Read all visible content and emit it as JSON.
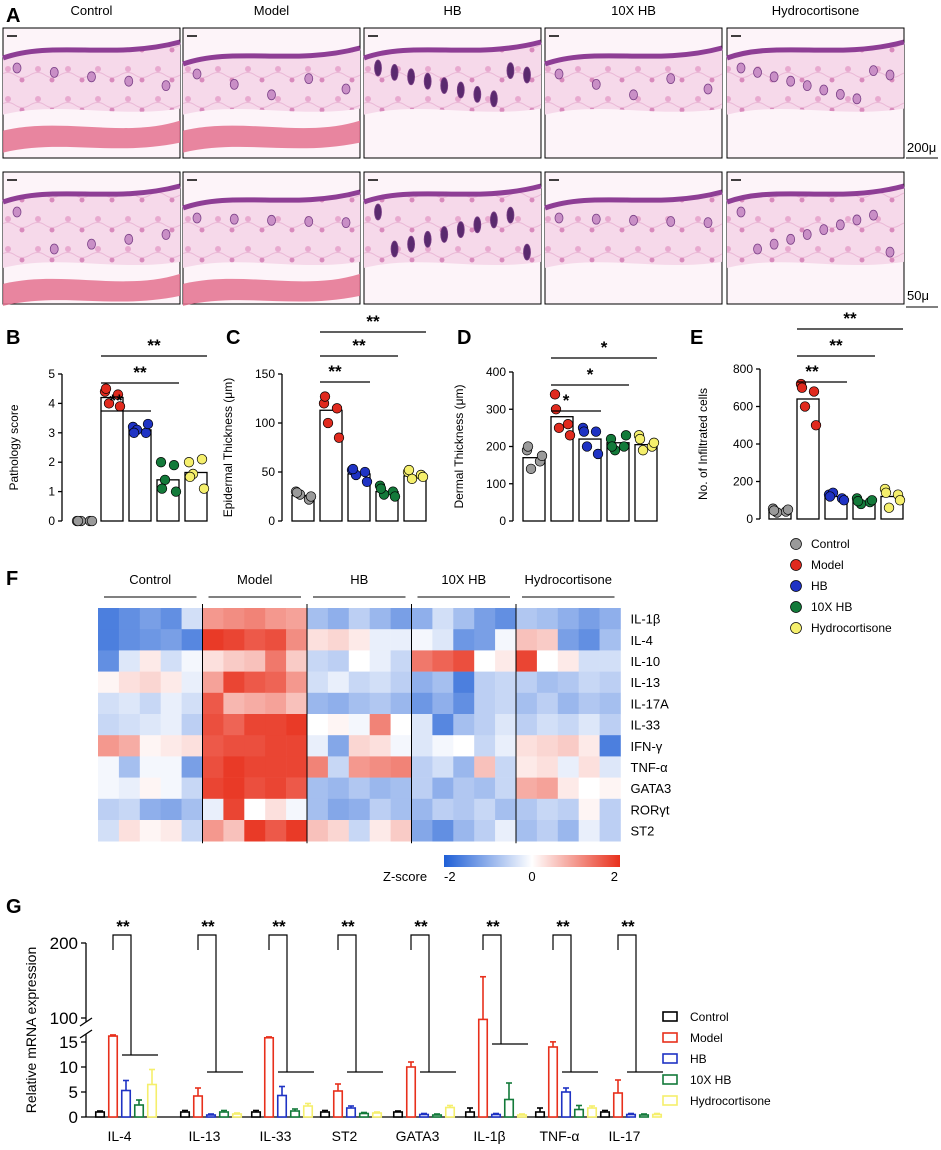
{
  "panel_a": {
    "letter": "A",
    "groups": [
      "Control",
      "Model",
      "HB",
      "10X HB",
      "Hydrocortisone"
    ],
    "scale_top": "200μ",
    "scale_bottom": "50μ"
  },
  "legend": {
    "items": [
      {
        "label": "Control",
        "color": "#9a9a9a"
      },
      {
        "label": "Model",
        "color": "#e02a1e"
      },
      {
        "label": "HB",
        "color": "#1f33c4"
      },
      {
        "label": "10X HB",
        "color": "#137a3a"
      },
      {
        "label": "Hydrocortisone",
        "color": "#f5ef6c"
      }
    ]
  },
  "chart_data": [
    {
      "panel": "B",
      "type": "bar",
      "ylabel": "Pathology score",
      "ylim": [
        0,
        5
      ],
      "yticks": [
        "0",
        "1",
        "2",
        "3",
        "4",
        "5"
      ],
      "categories": [
        "Control",
        "Model",
        "HB",
        "10X HB",
        "Hydrocortisone"
      ],
      "values": [
        0,
        4.2,
        3.1,
        1.4,
        1.65
      ],
      "points": [
        [
          0,
          0,
          0,
          0,
          0
        ],
        [
          4.4,
          4.3,
          4.0,
          3.9,
          4.5
        ],
        [
          3.2,
          3.0,
          3.1,
          3.3,
          3.0
        ],
        [
          2.0,
          1.9,
          1.4,
          1.0,
          1.1
        ],
        [
          2.0,
          2.1,
          1.6,
          1.1,
          1.5
        ]
      ],
      "sig": [
        {
          "label": "**",
          "from": 1,
          "to": 2
        },
        {
          "label": "**",
          "from": 1,
          "to": 3
        },
        {
          "label": "**",
          "from": 1,
          "to": 4
        }
      ]
    },
    {
      "panel": "C",
      "type": "bar",
      "ylabel": "Epidermal Thickness (μm)",
      "ylim": [
        0,
        150
      ],
      "yticks": [
        "0",
        "50",
        "100",
        "150"
      ],
      "categories": [
        "Control",
        "Model",
        "HB",
        "10X HB",
        "Hydrocortisone"
      ],
      "values": [
        26,
        113,
        48,
        30,
        46
      ],
      "points": [
        [
          30,
          22,
          27,
          25,
          29
        ],
        [
          120,
          115,
          100,
          85,
          127
        ],
        [
          52,
          50,
          47,
          40,
          53
        ],
        [
          36,
          30,
          27,
          25,
          33
        ],
        [
          50,
          47,
          43,
          45,
          52
        ]
      ],
      "sig": [
        {
          "label": "**",
          "from": 1,
          "to": 2
        },
        {
          "label": "**",
          "from": 1,
          "to": 3
        },
        {
          "label": "**",
          "from": 1,
          "to": 4
        }
      ]
    },
    {
      "panel": "D",
      "type": "bar",
      "ylabel": "Dermal Thickness (μm)",
      "ylim": [
        0,
        400
      ],
      "yticks": [
        "0",
        "100",
        "200",
        "300",
        "400"
      ],
      "categories": [
        "Control",
        "Model",
        "HB",
        "10X HB",
        "Hydrocortisone"
      ],
      "values": [
        170,
        280,
        220,
        210,
        205
      ],
      "points": [
        [
          190,
          160,
          140,
          175,
          200
        ],
        [
          340,
          260,
          250,
          230,
          300
        ],
        [
          250,
          240,
          200,
          180,
          240
        ],
        [
          220,
          200,
          190,
          230,
          200
        ],
        [
          230,
          200,
          190,
          210,
          220
        ]
      ],
      "sig": [
        {
          "label": "*",
          "from": 1,
          "to": 2
        },
        {
          "label": "*",
          "from": 1,
          "to": 3
        },
        {
          "label": "*",
          "from": 1,
          "to": 4
        }
      ]
    },
    {
      "panel": "E",
      "type": "bar",
      "ylabel": "No. of Infiltrated cells",
      "ylim": [
        0,
        800
      ],
      "yticks": [
        "0",
        "200",
        "400",
        "600",
        "800"
      ],
      "categories": [
        "Control",
        "Model",
        "HB",
        "10X HB",
        "Hydrocortisone"
      ],
      "values": [
        45,
        640,
        120,
        95,
        120
      ],
      "points": [
        [
          55,
          40,
          35,
          50,
          45
        ],
        [
          720,
          680,
          600,
          500,
          700
        ],
        [
          130,
          110,
          140,
          100,
          120
        ],
        [
          110,
          90,
          80,
          100,
          95
        ],
        [
          160,
          130,
          60,
          100,
          140
        ]
      ],
      "sig": [
        {
          "label": "**",
          "from": 1,
          "to": 2
        },
        {
          "label": "**",
          "from": 1,
          "to": 3
        },
        {
          "label": "**",
          "from": 1,
          "to": 4
        }
      ]
    },
    {
      "panel": "F",
      "type": "heatmap",
      "columns": [
        "Control",
        "Model",
        "HB",
        "10X HB",
        "Hydrocortisone"
      ],
      "rows": [
        "IL-1β",
        "IL-4",
        "IL-10",
        "IL-13",
        "IL-17A",
        "IL-33",
        "IFN-γ",
        "TNF-α",
        "GATA3",
        "RORγt",
        "ST2"
      ],
      "colorbar": {
        "label": "Z-score",
        "min": "-2",
        "mid": "0",
        "max": "2"
      },
      "values": [
        [
          -1.6,
          -1.4,
          -1.2,
          -1.4,
          -0.4,
          1.0,
          1.1,
          1.2,
          1.0,
          0.9,
          -0.8,
          -1.0,
          -0.6,
          -0.9,
          -1.2,
          -1.0,
          -0.4,
          -0.8,
          -1.2,
          -1.4,
          -0.7,
          -0.8,
          -1.0,
          -1.2,
          -1.0
        ],
        [
          -1.6,
          -1.4,
          -1.3,
          -1.2,
          -1.5,
          1.9,
          1.8,
          1.6,
          1.7,
          1.1,
          0.3,
          0.4,
          0.2,
          -0.2,
          -0.2,
          -0.1,
          -0.3,
          -1.3,
          -1.2,
          -0.1,
          0.6,
          0.5,
          -1.2,
          -1.4,
          -0.8
        ],
        [
          -1.4,
          -0.3,
          0.2,
          -0.4,
          -0.1,
          0.3,
          0.5,
          0.6,
          1.3,
          0.5,
          -0.5,
          -0.6,
          0.0,
          -0.2,
          -0.5,
          1.3,
          1.5,
          1.7,
          0.0,
          0.2,
          1.8,
          0.0,
          0.2,
          -0.4,
          -0.4
        ],
        [
          0.1,
          0.3,
          0.4,
          0.2,
          -0.2,
          0.9,
          1.8,
          1.6,
          1.5,
          1.0,
          -0.4,
          -0.2,
          -0.5,
          -0.4,
          -0.6,
          -1.0,
          -0.8,
          -1.6,
          -0.6,
          -0.5,
          -0.6,
          -0.8,
          -0.7,
          -0.5,
          -0.6
        ],
        [
          -0.4,
          -0.3,
          -0.5,
          -0.2,
          -0.4,
          1.6,
          0.7,
          0.8,
          0.9,
          0.6,
          -0.9,
          -1.0,
          -0.8,
          -0.7,
          -0.9,
          -1.3,
          -1.0,
          -1.4,
          -0.6,
          -0.5,
          -0.8,
          -0.6,
          -0.9,
          -0.7,
          -0.8
        ],
        [
          -0.5,
          -0.4,
          -0.3,
          -0.2,
          -0.6,
          1.7,
          1.5,
          1.8,
          1.8,
          1.9,
          0.0,
          0.1,
          -0.1,
          1.2,
          0.0,
          -0.3,
          -1.5,
          -0.8,
          -0.6,
          -0.3,
          -0.6,
          -0.4,
          -0.5,
          -0.3,
          -0.6
        ],
        [
          1.0,
          0.8,
          0.1,
          0.2,
          0.3,
          1.6,
          1.7,
          1.7,
          1.8,
          1.8,
          -0.2,
          -1.1,
          0.4,
          0.3,
          -0.1,
          -0.3,
          -0.1,
          0.0,
          -0.5,
          -0.2,
          0.3,
          0.4,
          0.5,
          0.2,
          -1.6
        ],
        [
          -0.1,
          -0.8,
          -0.1,
          -0.1,
          -1.2,
          1.7,
          1.9,
          1.8,
          1.8,
          1.8,
          1.2,
          -0.5,
          1.0,
          1.1,
          1.2,
          -0.6,
          -0.4,
          -0.9,
          0.6,
          -0.5,
          0.2,
          0.3,
          -0.2,
          0.3,
          -0.3
        ],
        [
          -0.1,
          -0.2,
          0.1,
          -0.1,
          -0.5,
          1.8,
          1.9,
          1.7,
          1.8,
          1.6,
          -0.8,
          -0.9,
          -0.7,
          -0.9,
          -0.8,
          -0.6,
          -1.0,
          -0.7,
          -0.8,
          -0.5,
          0.8,
          0.9,
          0.2,
          0.0,
          0.1
        ],
        [
          -0.6,
          -0.5,
          -1.0,
          -1.1,
          -0.8,
          -0.2,
          1.8,
          0.0,
          0.3,
          -0.1,
          -0.8,
          -1.1,
          -1.0,
          -0.6,
          -0.8,
          -0.9,
          -0.6,
          -0.7,
          -0.5,
          -0.8,
          -0.7,
          -0.5,
          -0.6,
          0.1,
          -0.6
        ],
        [
          -0.4,
          0.3,
          0.1,
          0.2,
          -0.5,
          1.0,
          0.6,
          1.9,
          1.6,
          1.9,
          0.6,
          0.4,
          -0.5,
          0.2,
          0.5,
          -1.1,
          -1.4,
          -0.9,
          -0.6,
          -0.2,
          -0.8,
          -0.6,
          -0.9,
          -0.2,
          -0.6
        ]
      ]
    },
    {
      "panel": "G",
      "type": "bar",
      "ylabel": "Relative mRNA expression",
      "ylim_lower": [
        0,
        15
      ],
      "ylim_upper": [
        100,
        200
      ],
      "yticks": [
        "0",
        "5",
        "10",
        "15",
        "100",
        "200"
      ],
      "categories": [
        "IL-4",
        "IL-13",
        "IL-33",
        "ST2",
        "GATA3",
        "IL-1β",
        "TNF-α",
        "IL-17"
      ],
      "series": [
        {
          "name": "Control",
          "values": [
            1,
            1,
            1,
            1,
            1,
            1,
            1,
            1
          ],
          "err": [
            0.2,
            0.3,
            0.3,
            0.3,
            0.2,
            0.8,
            0.8,
            0.3
          ]
        },
        {
          "name": "Model",
          "values": [
            36,
            4.2,
            30,
            5.2,
            10,
            95,
            14,
            4.8
          ],
          "err": [
            4,
            1.6,
            3,
            1.4,
            1,
            60,
            1.5,
            2.6
          ]
        },
        {
          "name": "HB",
          "values": [
            5.3,
            0.4,
            4.3,
            1.8,
            0.5,
            0.5,
            5,
            0.5
          ],
          "err": [
            2,
            0.2,
            1.8,
            0.4,
            0.2,
            0.2,
            0.8,
            0.2
          ]
        },
        {
          "name": "10X HB",
          "values": [
            2.4,
            1,
            1.2,
            0.7,
            0.4,
            3.5,
            1.5,
            0.4
          ],
          "err": [
            1,
            0.3,
            0.4,
            0.2,
            0.2,
            3.3,
            0.8,
            0.2
          ]
        },
        {
          "name": "Hydrocortisone",
          "values": [
            6.5,
            0.6,
            2.2,
            0.8,
            1.9,
            0.4,
            1.8,
            0.5
          ],
          "err": [
            3,
            0.2,
            0.5,
            0.2,
            0.4,
            0.2,
            0.4,
            0.2
          ]
        }
      ],
      "sig": "**"
    }
  ]
}
